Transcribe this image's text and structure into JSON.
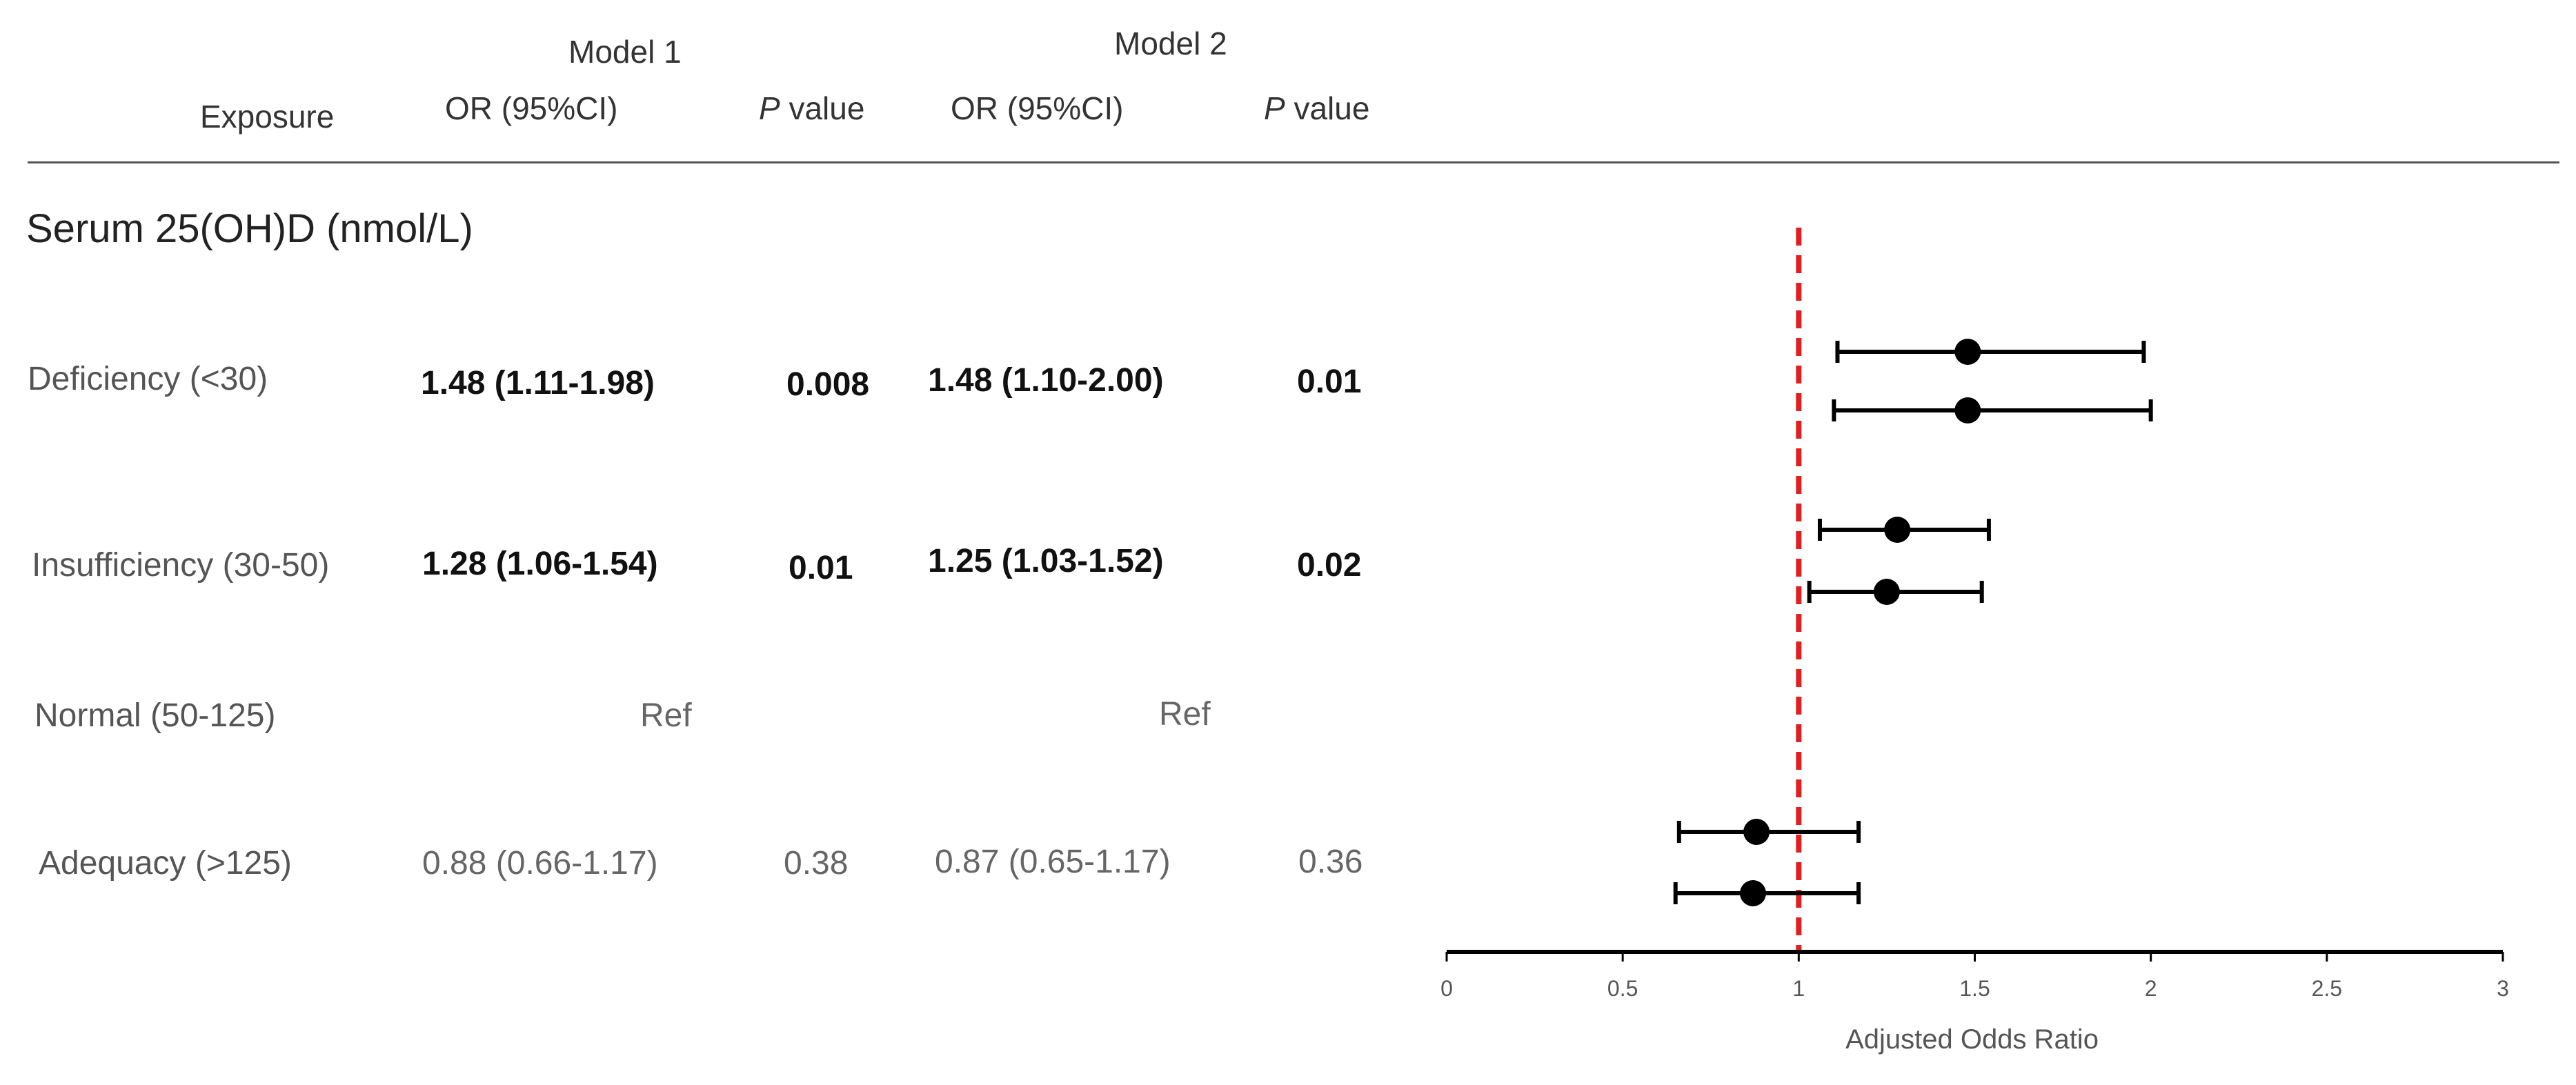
{
  "header": {
    "exposure": "Exposure",
    "model1": "Model 1",
    "model2": "Model 2",
    "or_label": "OR (95%CI)",
    "p_label_italic": "P",
    "p_label_rest": " value"
  },
  "section_title": "Serum 25(OH)D (nmol/L)",
  "rows": [
    {
      "label": "Deficiency (<30)",
      "m1_or": "1.48 (1.11-1.98)",
      "m1_p": "0.008",
      "m2_or": "1.48 (1.10-2.00)",
      "m2_p": "0.01"
    },
    {
      "label": "Insufficiency (30-50)",
      "m1_or": "1.28 (1.06-1.54)",
      "m1_p": "0.01",
      "m2_or": "1.25 (1.03-1.52)",
      "m2_p": "0.02"
    },
    {
      "label": "Normal (50-125)",
      "m1_or": "Ref",
      "m1_p": "",
      "m2_or": "Ref",
      "m2_p": ""
    },
    {
      "label": "Adequacy (>125)",
      "m1_or": "0.88 (0.66-1.17)",
      "m1_p": "0.38",
      "m2_or": "0.87 (0.65-1.17)",
      "m2_p": "0.36"
    }
  ],
  "chart_data": {
    "type": "scatter",
    "xlabel": "Adjusted Odds Ratio",
    "xlim": [
      0,
      3
    ],
    "ticks": [
      0,
      0.5,
      1,
      1.5,
      2,
      2.5,
      3
    ],
    "tick_labels": [
      "0",
      "0.5",
      "1",
      "1.5",
      "2",
      "2.5",
      "3"
    ],
    "reference_line": {
      "x": 1,
      "color": "#e02020",
      "style": "dashed"
    },
    "points": [
      {
        "row": "Deficiency (<30)",
        "model": "Model 1",
        "or": 1.48,
        "lo": 1.11,
        "hi": 1.98
      },
      {
        "row": "Deficiency (<30)",
        "model": "Model 2",
        "or": 1.48,
        "lo": 1.1,
        "hi": 2.0
      },
      {
        "row": "Insufficiency (30-50)",
        "model": "Model 1",
        "or": 1.28,
        "lo": 1.06,
        "hi": 1.54
      },
      {
        "row": "Insufficiency (30-50)",
        "model": "Model 2",
        "or": 1.25,
        "lo": 1.03,
        "hi": 1.52
      },
      {
        "row": "Adequacy (>125)",
        "model": "Model 1",
        "or": 0.88,
        "lo": 0.66,
        "hi": 1.17
      },
      {
        "row": "Adequacy (>125)",
        "model": "Model 2",
        "or": 0.87,
        "lo": 0.65,
        "hi": 1.17
      }
    ],
    "colors": {
      "point": "#000000",
      "axis": "#000000"
    }
  }
}
